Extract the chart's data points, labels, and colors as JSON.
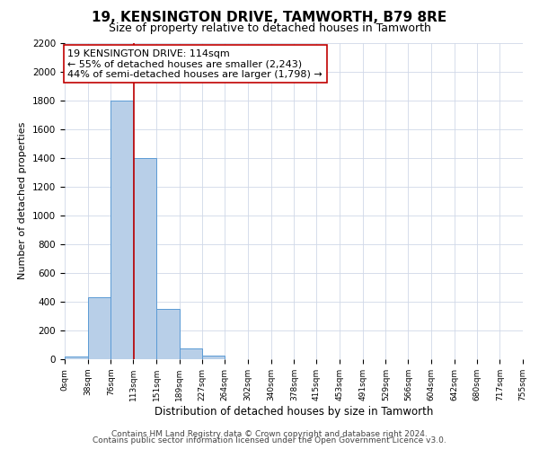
{
  "title": "19, KENSINGTON DRIVE, TAMWORTH, B79 8RE",
  "subtitle": "Size of property relative to detached houses in Tamworth",
  "xlabel": "Distribution of detached houses by size in Tamworth",
  "ylabel": "Number of detached properties",
  "bar_edges": [
    0,
    38,
    76,
    113,
    151,
    189,
    227,
    264,
    302,
    340,
    378,
    415,
    453,
    491,
    529,
    566,
    604,
    642,
    680,
    717,
    755
  ],
  "bar_heights": [
    20,
    430,
    1800,
    1400,
    350,
    75,
    25,
    0,
    0,
    0,
    0,
    0,
    0,
    0,
    0,
    0,
    0,
    0,
    0,
    0
  ],
  "bar_color": "#b8cfe8",
  "bar_edge_color": "#5b9bd5",
  "property_line_x": 114,
  "property_line_color": "#c00000",
  "annotation_line1": "19 KENSINGTON DRIVE: 114sqm",
  "annotation_line2": "← 55% of detached houses are smaller (2,243)",
  "annotation_line3": "44% of semi-detached houses are larger (1,798) →",
  "annotation_box_color": "#ffffff",
  "annotation_box_edge_color": "#c00000",
  "ylim": [
    0,
    2200
  ],
  "yticks": [
    0,
    200,
    400,
    600,
    800,
    1000,
    1200,
    1400,
    1600,
    1800,
    2000,
    2200
  ],
  "tick_labels": [
    "0sqm",
    "38sqm",
    "76sqm",
    "113sqm",
    "151sqm",
    "189sqm",
    "227sqm",
    "264sqm",
    "302sqm",
    "340sqm",
    "378sqm",
    "415sqm",
    "453sqm",
    "491sqm",
    "529sqm",
    "566sqm",
    "604sqm",
    "642sqm",
    "680sqm",
    "717sqm",
    "755sqm"
  ],
  "footer_line1": "Contains HM Land Registry data © Crown copyright and database right 2024.",
  "footer_line2": "Contains public sector information licensed under the Open Government Licence v3.0.",
  "bg_color": "#ffffff",
  "grid_color": "#d0d8e8",
  "title_fontsize": 11,
  "subtitle_fontsize": 9,
  "xlabel_fontsize": 8.5,
  "ylabel_fontsize": 8,
  "annotation_fontsize": 8,
  "footer_fontsize": 6.5
}
